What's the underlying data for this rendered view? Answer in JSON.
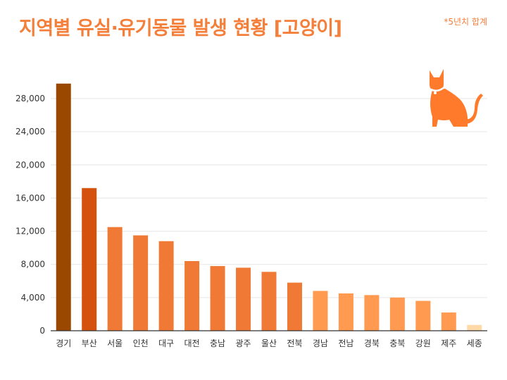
{
  "title": "지역별 유실·유기동물 발생 현황 [고양이]",
  "note": "*5년치 합계",
  "icon": "cat-icon",
  "colors": {
    "title": "#f47f3a",
    "grid": "#e6e6e6",
    "axis": "#333333",
    "label": "#333333"
  },
  "chart_data": {
    "type": "bar",
    "title": "지역별 유실·유기동물 발생 현황 [고양이]",
    "xlabel": "",
    "ylabel": "",
    "ylim": [
      0,
      28000
    ],
    "yticks": [
      0,
      4000,
      8000,
      12000,
      16000,
      20000,
      24000,
      28000
    ],
    "ytick_labels": [
      "0",
      "4,000",
      "8,000",
      "12,000",
      "16,000",
      "20,000",
      "24,000",
      "28,000"
    ],
    "grid": true,
    "categories": [
      "경기",
      "부산",
      "서울",
      "인천",
      "대구",
      "대전",
      "충남",
      "광주",
      "울산",
      "전북",
      "경남",
      "전남",
      "경북",
      "충북",
      "강원",
      "제주",
      "세종"
    ],
    "values": [
      29800,
      17200,
      12500,
      11500,
      10800,
      8400,
      7800,
      7600,
      7100,
      5800,
      4800,
      4500,
      4300,
      4000,
      3600,
      2200,
      700
    ],
    "bar_colors": [
      "#9a4800",
      "#d4520e",
      "#f07a35",
      "#f07a35",
      "#f07a35",
      "#f07a35",
      "#f07a35",
      "#f07a35",
      "#f07a35",
      "#f07a35",
      "#ff9a50",
      "#ff9a50",
      "#ff9a50",
      "#ff9a50",
      "#ff9a50",
      "#ff9a50",
      "#ffd9a8"
    ]
  }
}
